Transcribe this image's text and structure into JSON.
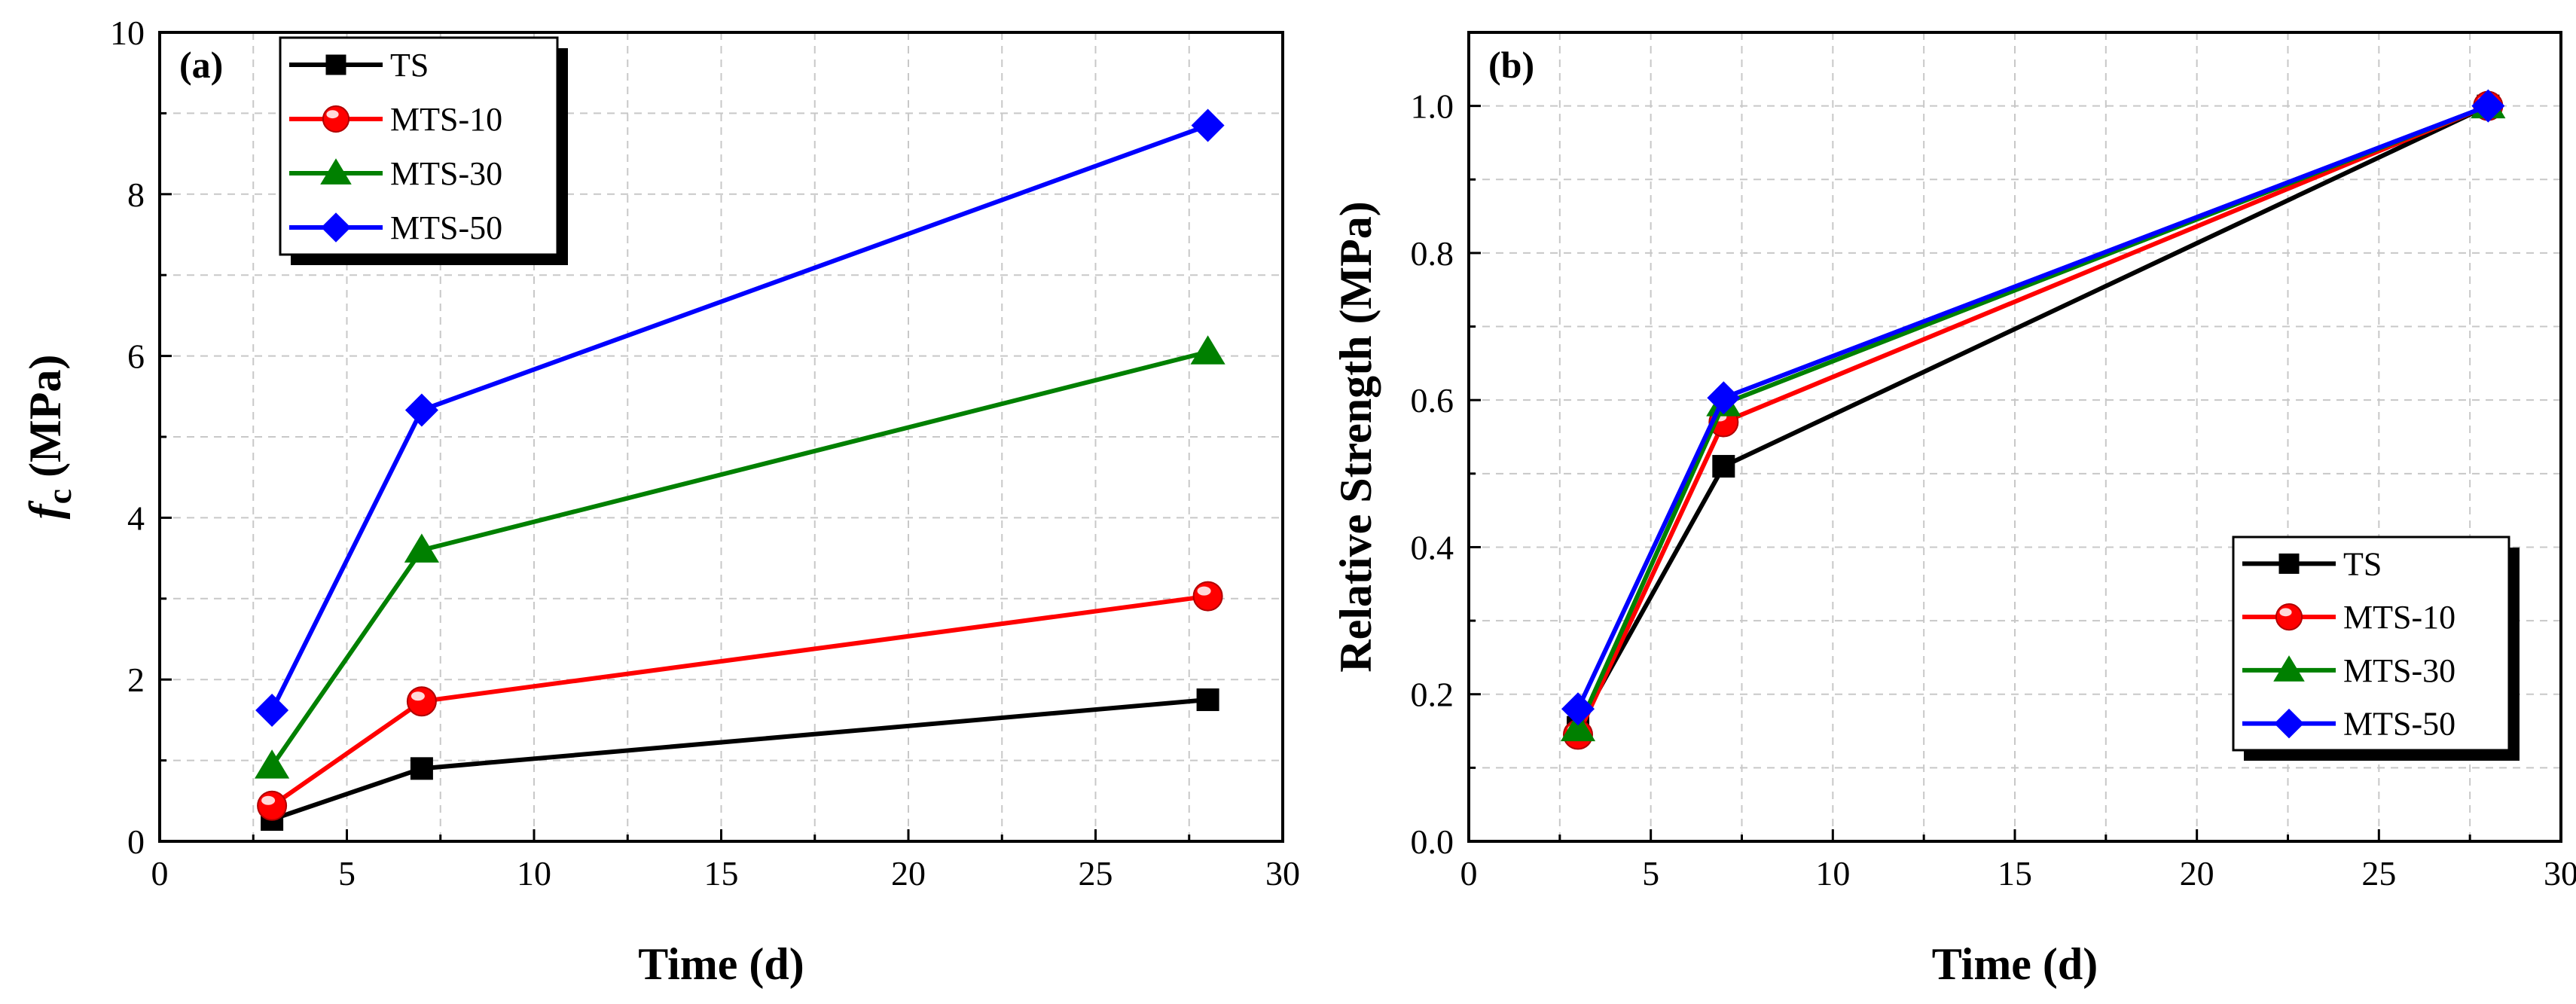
{
  "colors": {
    "TS": "#000000",
    "MTS-10": "#ff0000",
    "MTS-30": "#008000",
    "MTS-50": "#0000ff",
    "grid": "#c8c8c8"
  },
  "chart_data": [
    {
      "type": "line",
      "panel_label": "(a)",
      "xlabel": "Time (d)",
      "ylabel_main": "f",
      "ylabel_sub": "c",
      "ylabel_rest": " (MPa)",
      "xlim": [
        0,
        30
      ],
      "ylim": [
        0,
        10
      ],
      "xticks": [
        "0",
        "5",
        "10",
        "15",
        "20",
        "25",
        "30"
      ],
      "yticks": [
        "0",
        "2",
        "4",
        "6",
        "8",
        "10"
      ],
      "grid": true,
      "legend": "top-left",
      "x": [
        3,
        7,
        28
      ],
      "series": [
        {
          "name": "TS",
          "marker": "square",
          "values": [
            0.27,
            0.9,
            1.75
          ]
        },
        {
          "name": "MTS-10",
          "marker": "circle",
          "values": [
            0.44,
            1.73,
            3.03
          ]
        },
        {
          "name": "MTS-30",
          "marker": "triangle",
          "values": [
            0.93,
            3.6,
            6.05
          ]
        },
        {
          "name": "MTS-50",
          "marker": "diamond",
          "values": [
            1.62,
            5.33,
            8.85
          ]
        }
      ]
    },
    {
      "type": "line",
      "panel_label": "(b)",
      "xlabel": "Time (d)",
      "ylabel": "Relative Strength (MPa)",
      "xlim": [
        0,
        30
      ],
      "ylim": [
        0,
        1.1
      ],
      "xticks": [
        "0",
        "5",
        "10",
        "15",
        "20",
        "25",
        "30"
      ],
      "yticks": [
        "0.0",
        "0.2",
        "0.4",
        "0.6",
        "0.8",
        "1.0"
      ],
      "grid": true,
      "legend": "bottom-right",
      "x": [
        3,
        7,
        28
      ],
      "series": [
        {
          "name": "TS",
          "marker": "square",
          "values": [
            0.155,
            0.51,
            1.0
          ]
        },
        {
          "name": "MTS-10",
          "marker": "circle",
          "values": [
            0.145,
            0.57,
            1.0
          ]
        },
        {
          "name": "MTS-30",
          "marker": "triangle",
          "values": [
            0.153,
            0.595,
            1.0
          ]
        },
        {
          "name": "MTS-50",
          "marker": "diamond",
          "values": [
            0.18,
            0.603,
            1.0
          ]
        }
      ]
    }
  ]
}
